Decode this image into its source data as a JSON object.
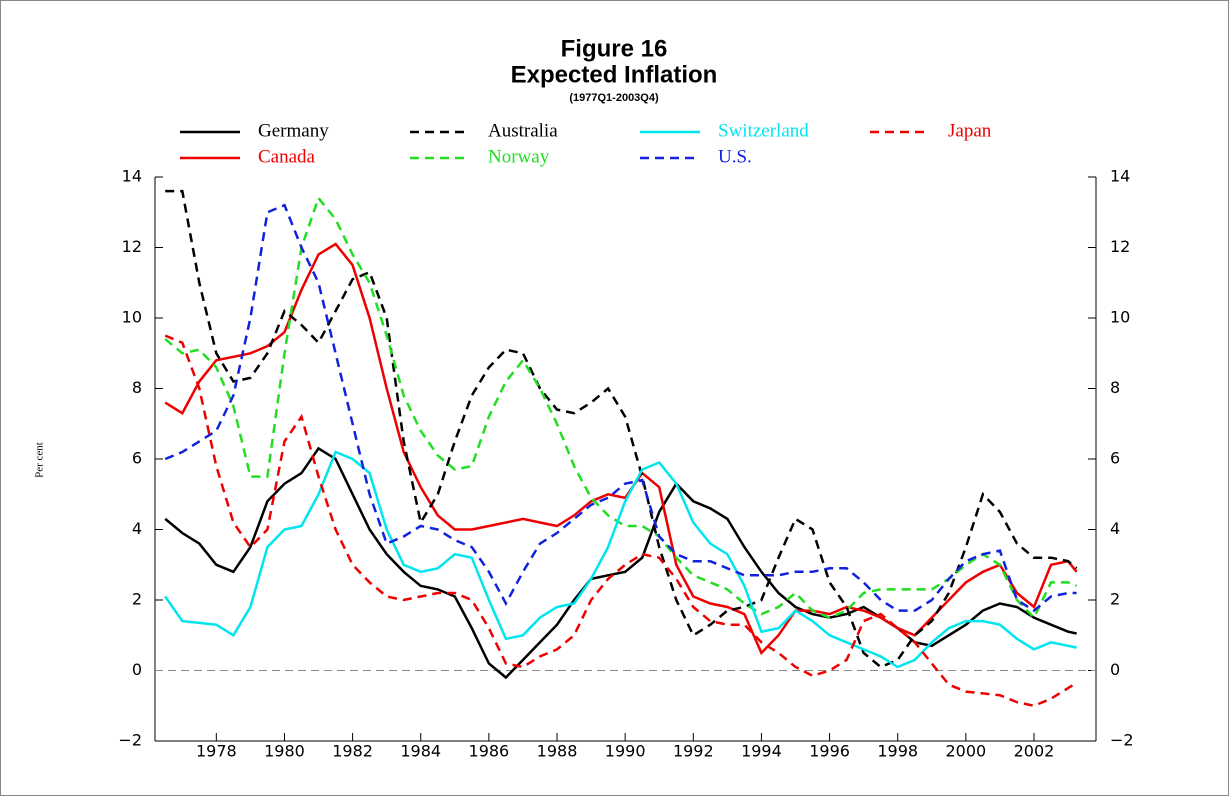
{
  "chart_data": {
    "type": "line",
    "title": "Figure 16",
    "subtitle": "Expected Inflation",
    "period": "(1977Q1-2003Q4)",
    "ylabel": "Per cent",
    "x": [
      1977,
      1977.5,
      1978,
      1978.5,
      1979,
      1979.5,
      1980,
      1980.5,
      1981,
      1981.5,
      1982,
      1982.5,
      1983,
      1983.5,
      1984,
      1984.5,
      1985,
      1985.5,
      1986,
      1986.5,
      1987,
      1987.5,
      1988,
      1988.5,
      1989,
      1989.5,
      1990,
      1990.5,
      1991,
      1991.5,
      1992,
      1992.5,
      1993,
      1993.5,
      1994,
      1994.5,
      1995,
      1995.5,
      1996,
      1996.5,
      1997,
      1997.5,
      1998,
      1998.5,
      1999,
      1999.5,
      2000,
      2000.5,
      2001,
      2001.5,
      2002,
      2002.5,
      2003,
      2003.5,
      2003.75
    ],
    "series": [
      {
        "name": "Germany",
        "color": "#000000",
        "dashed": false,
        "values": [
          4.3,
          3.9,
          3.6,
          3.0,
          2.8,
          3.5,
          4.8,
          5.3,
          5.6,
          6.3,
          6.0,
          5.0,
          4.0,
          3.3,
          2.8,
          2.4,
          2.3,
          2.1,
          1.2,
          0.2,
          -0.2,
          0.3,
          0.8,
          1.3,
          2.0,
          2.6,
          2.7,
          2.8,
          3.2,
          4.5,
          5.3,
          4.8,
          4.6,
          4.3,
          3.5,
          2.8,
          2.2,
          1.8,
          1.6,
          1.5,
          1.6,
          1.8,
          1.5,
          1.2,
          0.8,
          0.7,
          1.0,
          1.3,
          1.7,
          1.9,
          1.8,
          1.5,
          1.3,
          1.1,
          1.05
        ]
      },
      {
        "name": "Canada",
        "color": "#ee0000",
        "dashed": false,
        "values": [
          7.6,
          7.3,
          8.2,
          8.8,
          8.9,
          9.0,
          9.2,
          9.6,
          10.8,
          11.8,
          12.1,
          11.5,
          10.0,
          8.0,
          6.2,
          5.2,
          4.4,
          4.0,
          4.0,
          4.1,
          4.2,
          4.3,
          4.2,
          4.1,
          4.4,
          4.8,
          5.0,
          4.9,
          5.6,
          5.2,
          3.0,
          2.1,
          1.9,
          1.8,
          1.6,
          0.5,
          1.0,
          1.7,
          1.7,
          1.6,
          1.8,
          1.7,
          1.5,
          1.2,
          1.0,
          1.5,
          2.0,
          2.5,
          2.8,
          3.0,
          2.2,
          1.8,
          3.0,
          3.1,
          2.8
        ]
      },
      {
        "name": "Australia",
        "color": "#000000",
        "dashed": true,
        "values": [
          13.6,
          13.6,
          11.0,
          9.0,
          8.2,
          8.3,
          9.0,
          10.2,
          9.8,
          9.3,
          10.2,
          11.1,
          11.3,
          10.0,
          6.5,
          4.2,
          5.0,
          6.5,
          7.8,
          8.6,
          9.1,
          9.0,
          8.0,
          7.4,
          7.3,
          7.6,
          8.0,
          7.2,
          5.5,
          3.5,
          2.0,
          1.0,
          1.3,
          1.7,
          1.8,
          2.0,
          3.2,
          4.3,
          4.0,
          2.5,
          1.8,
          0.5,
          0.1,
          0.3,
          1.0,
          1.4,
          2.2,
          3.5,
          5.0,
          4.5,
          3.6,
          3.2,
          3.2,
          3.1,
          2.9
        ]
      },
      {
        "name": "Norway",
        "color": "#22dd22",
        "dashed": true,
        "values": [
          9.4,
          9.0,
          9.1,
          8.6,
          7.5,
          5.5,
          5.5,
          9.0,
          12.0,
          13.4,
          12.8,
          11.8,
          11.0,
          9.5,
          7.8,
          6.8,
          6.1,
          5.7,
          5.8,
          7.2,
          8.2,
          8.8,
          8.0,
          7.0,
          5.8,
          4.9,
          4.4,
          4.1,
          4.1,
          3.8,
          3.2,
          2.7,
          2.5,
          2.3,
          1.9,
          1.6,
          1.8,
          2.2,
          1.7,
          1.5,
          1.7,
          2.2,
          2.3,
          2.3,
          2.3,
          2.3,
          2.6,
          3.0,
          3.3,
          3.0,
          2.0,
          1.5,
          2.5,
          2.5,
          2.4
        ]
      },
      {
        "name": "Switzerland",
        "color": "#00e5ee",
        "dashed": false,
        "values": [
          2.1,
          1.4,
          1.35,
          1.3,
          1.0,
          1.8,
          3.5,
          4.0,
          4.1,
          5.0,
          6.2,
          6.0,
          5.6,
          4.0,
          3.0,
          2.8,
          2.9,
          3.3,
          3.2,
          2.0,
          0.9,
          1.0,
          1.5,
          1.8,
          1.9,
          2.6,
          3.5,
          4.8,
          5.7,
          5.9,
          5.3,
          4.2,
          3.6,
          3.3,
          2.4,
          1.1,
          1.2,
          1.7,
          1.4,
          1.0,
          0.8,
          0.6,
          0.4,
          0.1,
          0.3,
          0.8,
          1.2,
          1.4,
          1.4,
          1.3,
          0.9,
          0.6,
          0.8,
          0.7,
          0.65
        ]
      },
      {
        "name": "U.S.",
        "color": "#1122dd",
        "dashed": true,
        "values": [
          6.0,
          6.2,
          6.5,
          6.8,
          7.8,
          10.0,
          13.0,
          13.2,
          12.0,
          11.0,
          9.0,
          7.0,
          5.0,
          3.6,
          3.8,
          4.1,
          4.0,
          3.7,
          3.5,
          2.8,
          1.9,
          2.8,
          3.6,
          3.9,
          4.3,
          4.7,
          4.9,
          5.3,
          5.4,
          3.8,
          3.3,
          3.1,
          3.1,
          2.9,
          2.7,
          2.7,
          2.7,
          2.8,
          2.8,
          2.9,
          2.9,
          2.5,
          2.0,
          1.7,
          1.7,
          2.0,
          2.6,
          3.1,
          3.3,
          3.4,
          2.0,
          1.7,
          2.1,
          2.2,
          2.2
        ]
      },
      {
        "name": "Japan",
        "color": "#ee0000",
        "dashed": true,
        "values": [
          9.5,
          9.3,
          8.0,
          5.8,
          4.2,
          3.5,
          4.0,
          6.5,
          7.2,
          5.5,
          4.0,
          3.0,
          2.5,
          2.1,
          2.0,
          2.1,
          2.2,
          2.2,
          2.0,
          1.2,
          0.2,
          0.1,
          0.4,
          0.6,
          1.0,
          2.0,
          2.6,
          3.0,
          3.3,
          3.2,
          2.6,
          1.8,
          1.4,
          1.3,
          1.3,
          0.8,
          0.5,
          0.1,
          -0.15,
          0.0,
          0.3,
          1.4,
          1.6,
          1.2,
          0.8,
          0.2,
          -0.4,
          -0.6,
          -0.65,
          -0.7,
          -0.9,
          -1.0,
          -0.8,
          -0.5,
          -0.35
        ]
      }
    ],
    "xlim": [
      1976.7,
      2004.32
    ],
    "xticks": [
      {
        "value": 1978.5,
        "label": "1978"
      },
      {
        "value": 1980.5,
        "label": "1980"
      },
      {
        "value": 1982.5,
        "label": "1982"
      },
      {
        "value": 1984.5,
        "label": "1984"
      },
      {
        "value": 1986.5,
        "label": "1986"
      },
      {
        "value": 1988.5,
        "label": "1988"
      },
      {
        "value": 1990.5,
        "label": "1990"
      },
      {
        "value": 1992.5,
        "label": "1992"
      },
      {
        "value": 1994.5,
        "label": "1994"
      },
      {
        "value": 1996.5,
        "label": "1996"
      },
      {
        "value": 1998.5,
        "label": "1998"
      },
      {
        "value": 2000.5,
        "label": "2000"
      },
      {
        "value": 2002.5,
        "label": "2002"
      }
    ],
    "ylim": [
      -2,
      14
    ],
    "yticks": [
      {
        "value": -2,
        "label": "−2"
      },
      0,
      2,
      4,
      6,
      8,
      10,
      12,
      14
    ],
    "y2lim": [
      -2,
      14
    ],
    "y2ticks": [
      {
        "value": -2,
        "label": "−2"
      },
      0,
      2,
      4,
      6,
      8,
      10,
      12,
      14
    ],
    "zero_line": true
  }
}
